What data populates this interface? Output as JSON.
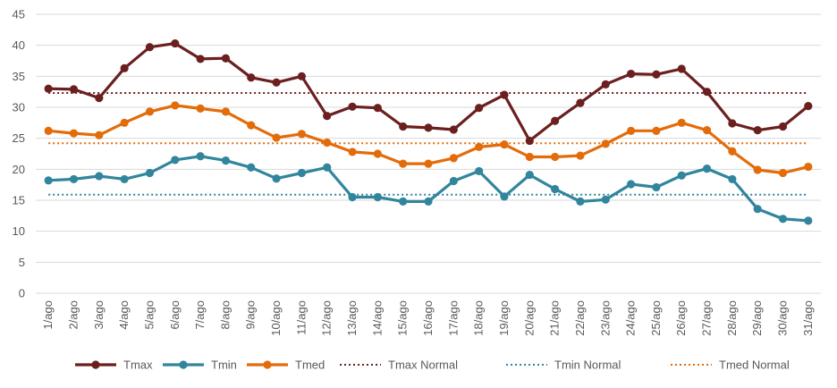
{
  "chart_data": {
    "type": "line",
    "title": "",
    "xlabel": "",
    "ylabel": "",
    "ylim": [
      0,
      45
    ],
    "y_ticks": [
      0,
      5,
      10,
      15,
      20,
      25,
      30,
      35,
      40,
      45
    ],
    "grid": "horizontal",
    "legend_position": "bottom",
    "categories": [
      "1/ago",
      "2/ago",
      "3/ago",
      "4/ago",
      "5/ago",
      "6/ago",
      "7/ago",
      "8/ago",
      "9/ago",
      "10/ago",
      "11/ago",
      "12/ago",
      "13/ago",
      "14/ago",
      "15/ago",
      "16/ago",
      "17/ago",
      "18/ago",
      "19/ago",
      "20/ago",
      "21/ago",
      "22/ago",
      "23/ago",
      "24/ago",
      "25/ago",
      "26/ago",
      "27/ago",
      "28/ago",
      "29/ago",
      "30/ago",
      "31/ago"
    ],
    "series": [
      {
        "name": "Tmax",
        "color": "#6B1F1F",
        "style": "solid-markers",
        "values": [
          33.0,
          32.9,
          31.5,
          36.3,
          39.7,
          40.3,
          37.8,
          37.9,
          34.8,
          34.0,
          35.0,
          28.6,
          30.1,
          29.9,
          26.9,
          26.7,
          26.4,
          29.9,
          32.0,
          24.6,
          27.8,
          30.7,
          33.7,
          35.4,
          35.3,
          36.2,
          32.5,
          27.4,
          26.3,
          26.9,
          30.2
        ]
      },
      {
        "name": "Tmin",
        "color": "#31859C",
        "style": "solid-markers",
        "values": [
          18.2,
          18.4,
          18.9,
          18.4,
          19.4,
          21.5,
          22.1,
          21.4,
          20.3,
          18.5,
          19.4,
          20.3,
          15.5,
          15.5,
          14.8,
          14.8,
          18.1,
          19.7,
          15.6,
          19.1,
          16.8,
          14.8,
          15.1,
          17.6,
          17.1,
          19.0,
          20.1,
          18.4,
          13.6,
          12.0,
          11.7
        ]
      },
      {
        "name": "Tmed",
        "color": "#E36C0A",
        "style": "solid-markers",
        "values": [
          26.2,
          25.8,
          25.5,
          27.5,
          29.3,
          30.3,
          29.8,
          29.3,
          27.1,
          25.1,
          25.7,
          24.3,
          22.8,
          22.5,
          20.9,
          20.9,
          21.8,
          23.6,
          24.0,
          22.0,
          22.0,
          22.2,
          24.1,
          26.2,
          26.2,
          27.5,
          26.3,
          22.9,
          19.9,
          19.4,
          20.4
        ]
      },
      {
        "name": "Tmax Normal",
        "color": "#6B1F1F",
        "style": "dotted",
        "constant": 32.3
      },
      {
        "name": "Tmin Normal",
        "color": "#31859C",
        "style": "dotted",
        "constant": 15.9
      },
      {
        "name": "Tmed Normal",
        "color": "#E36C0A",
        "style": "dotted",
        "constant": 24.2
      }
    ]
  }
}
